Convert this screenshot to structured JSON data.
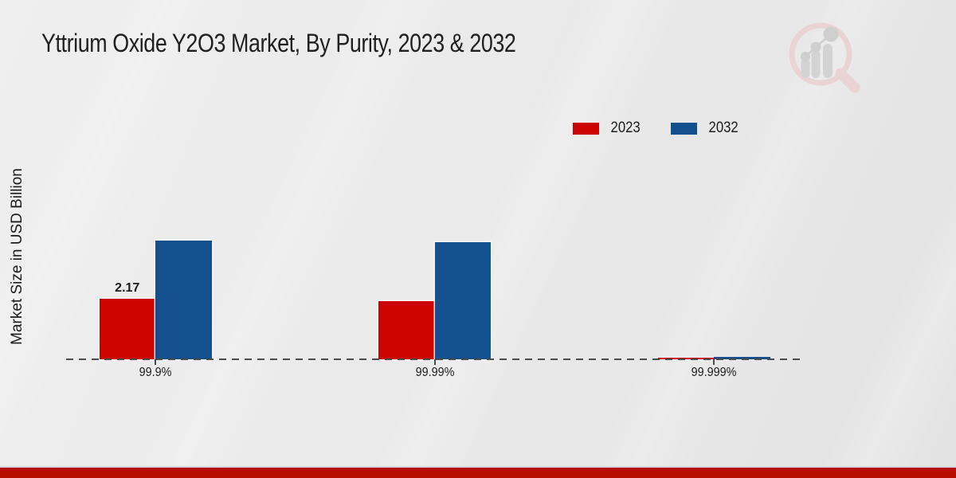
{
  "chart_data": {
    "type": "bar",
    "title": "Yttrium Oxide Y2O3 Market, By Purity, 2023 & 2032",
    "ylabel": "Market Size in USD Billion",
    "xlabel": "",
    "categories": [
      "99.9%",
      "99.99%",
      "99.999%"
    ],
    "series": [
      {
        "name": "2023",
        "color": "#cb0301",
        "values": [
          2.17,
          2.1,
          0.05
        ],
        "value_labels": [
          "2.17",
          "",
          ""
        ]
      },
      {
        "name": "2032",
        "color": "#15508e",
        "values": [
          4.25,
          4.2,
          0.09
        ],
        "value_labels": [
          "",
          "",
          ""
        ]
      }
    ],
    "ylim": [
      0,
      5
    ],
    "legend_position": "top-right",
    "grid": false,
    "axis_style": "dashed-baseline-only"
  },
  "branding": {
    "footer_strip_color": "#b50d00",
    "logo_name": "market-research-future-watermark",
    "logo_ring_color": "#ead3d3",
    "logo_bar_color": "#d3d3d3",
    "logo_dot_color": "#cfcfcf"
  }
}
